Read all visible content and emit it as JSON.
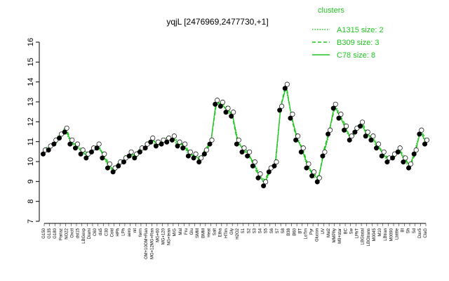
{
  "chart_data": {
    "type": "line",
    "title": "yqjL [2476969,2477730,+1]",
    "xlabel": "",
    "ylabel": "",
    "ylim": [
      7,
      16
    ],
    "yticks": [
      7,
      8,
      9,
      10,
      11,
      12,
      13,
      14,
      15,
      16
    ],
    "grid": false,
    "legend_title": "clusters",
    "legend_position": "top-right",
    "series": [
      {
        "name": "A1315 size: 2",
        "style": "dotted",
        "color": "#1fc51f"
      },
      {
        "name": "B309 size: 3",
        "style": "dashed",
        "color": "#1fc51f"
      },
      {
        "name": "C78 size: 8",
        "style": "solid",
        "color": "#1fc51f"
      }
    ],
    "categories": [
      "G150",
      "G135",
      "G180",
      "Pariaz",
      "NO22",
      "Oxctl",
      "dsl15",
      "LBGexp",
      "Diami",
      "C60",
      "da5",
      "C30",
      "Cold",
      "HPh",
      "LPh",
      "aero",
      "nit",
      "ferm",
      "OM+10OM+Ran",
      "MG+12MG+Ran",
      "MG+60",
      "MG+90",
      "MG+120",
      "LBlog",
      "NG+tean",
      "M9+sum",
      "Mal",
      "M/G",
      "Fru",
      "Glu",
      "Heat",
      "BMM",
      "Salt",
      "Etha",
      "HTim",
      "Gly",
      "H2O2",
      "S1",
      "S2",
      "S3",
      "S4",
      "S5",
      "S6",
      "S7",
      "S8",
      "B38",
      "B60",
      "BT",
      "LoTm",
      "Pyr",
      "Glucon",
      "UV",
      "Mal2",
      "MMPhy",
      "M9+star",
      "BC",
      "Sw",
      "LPhT",
      "LBGtatal",
      "LBGtrans",
      "M0045",
      "M10",
      "LBtran",
      "M0055",
      "M0090",
      "Lbtitle",
      "BI",
      "Sh",
      "Sd",
      "M6",
      "Dax5",
      "ClaG"
    ],
    "values": [
      10.5,
      10.7,
      11,
      11.3,
      11.6,
      11,
      10.8,
      10.5,
      10.3,
      10.6,
      10.8,
      10.3,
      9.8,
      9.6,
      9.9,
      10.1,
      10.4,
      10.3,
      10.6,
      10.8,
      11.1,
      10.9,
      11,
      11.1,
      11.2,
      10.9,
      10.8,
      10.4,
      10.3,
      10.1,
      10.5,
      11,
      13,
      12.9,
      12.6,
      12.4,
      11,
      10.6,
      10.4,
      9.9,
      9.3,
      8.9,
      9.6,
      9.9,
      12.7,
      13.8,
      12.3,
      11.2,
      10.6,
      9.8,
      9.4,
      9.1,
      10.4,
      11.5,
      12.8,
      12.3,
      11.7,
      11.2,
      11.6,
      11.9,
      11.4,
      11.2,
      10.8,
      10.4,
      10.1,
      10.3,
      10.6,
      10.1,
      9.8,
      10.5,
      11.5,
      11
    ],
    "x_labels_shown": [
      "G150",
      "G135",
      "G180",
      "Pariaz",
      "NO22",
      "Oxctl",
      "dsl15",
      "LBGexp",
      "Diami",
      "C60",
      "da5",
      "C30",
      "Cold",
      "HPh",
      "LPh",
      "aero",
      "nit",
      "ferm",
      "OM+10OM+Ran",
      "MG+12MG+Ran",
      "MG+60",
      "MG+120",
      "NG+tean",
      "M/G",
      "Mal",
      "Fru",
      "Glu",
      "SMM",
      "BMM",
      "Heat",
      "Salt",
      "Etha",
      "HTim",
      "Gly",
      "H2O2",
      "S1",
      "S2",
      "S3",
      "S4",
      "S5",
      "S6",
      "S7",
      "S8",
      "B38",
      "B60",
      "BT",
      "LoTm",
      "Pyr",
      "Glucon",
      "UV",
      "Mal2",
      "MMPhy",
      "M9+star",
      "BC",
      "Sw",
      "LPhT",
      "LBGtatal",
      "LBGtrans",
      "M0045",
      "M10",
      "LBtran",
      "M0090",
      "Lbtitle",
      "BI",
      "Sh",
      "Sd",
      "Dax5",
      "ClaG"
    ]
  },
  "colors": {
    "series": "#1fc51f",
    "points_fill": "#000000",
    "open_points": "#ffffff"
  }
}
